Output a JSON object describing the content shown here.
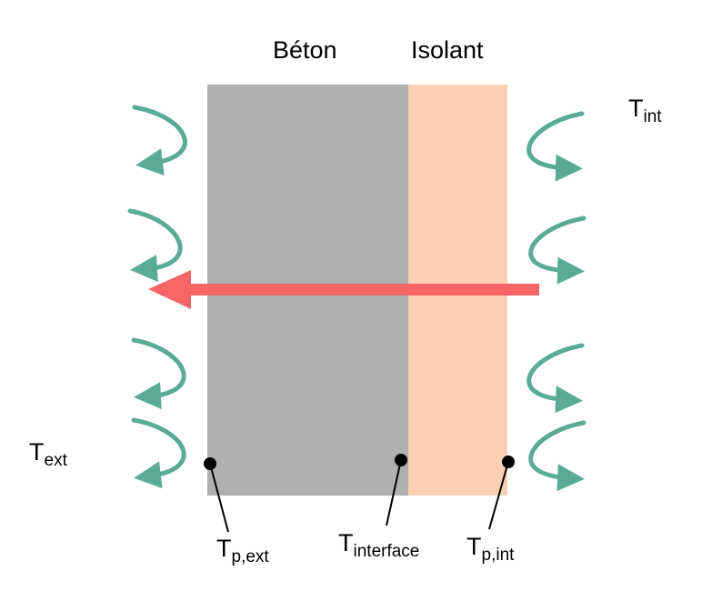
{
  "layers": {
    "concrete": {
      "label": "Béton",
      "color": "#b0b0b0"
    },
    "insulation": {
      "label": "Isolant",
      "color": "#fdd0b1"
    }
  },
  "temperatures": {
    "interior": {
      "main": "T",
      "sub": "int"
    },
    "exterior": {
      "main": "T",
      "sub": "ext"
    },
    "wall_exterior": {
      "main": "T",
      "sub": "p,ext"
    },
    "interface": {
      "main": "T",
      "sub": "interface"
    },
    "wall_interior": {
      "main": "T",
      "sub": "p,int"
    }
  },
  "colors": {
    "heat_flux_arrow": "#f76565",
    "convection_arrows": "#5aab95",
    "points": "#000000"
  },
  "icons": {
    "heat_flux": "left-arrow",
    "convection": "curved-arrow"
  }
}
